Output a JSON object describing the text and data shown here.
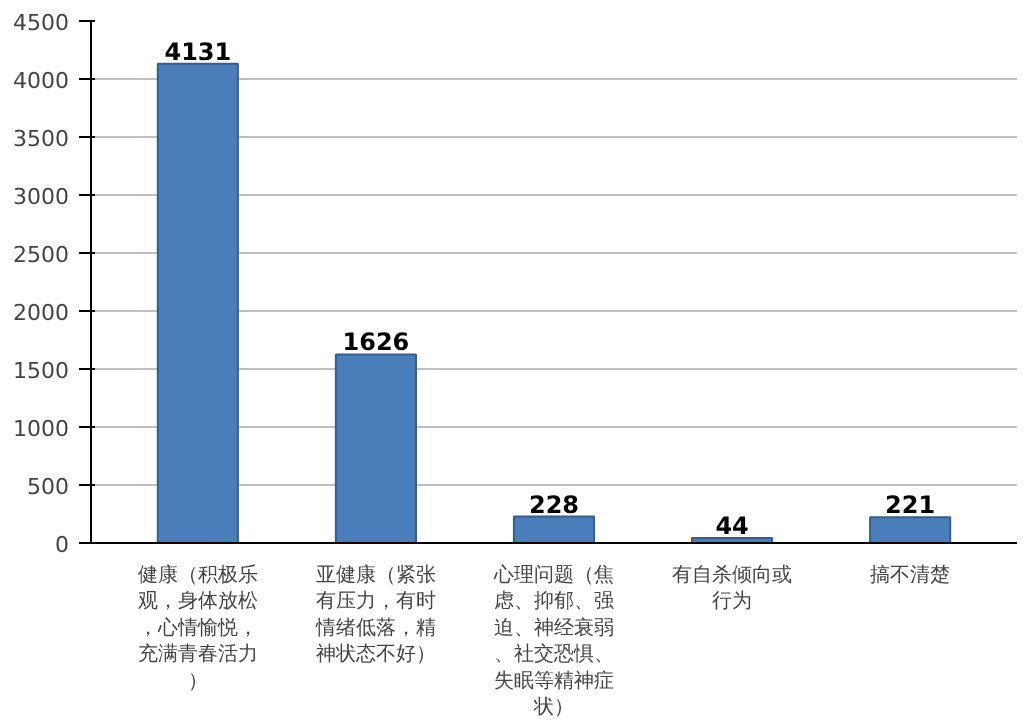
{
  "chart_data": {
    "type": "bar",
    "categories": [
      "健康（积极乐观，身体放松，心情愉悦，充满青春活力）",
      "亚健康（紧张有压力，有时情绪低落，精神状态不好）",
      "心理问题（焦虑、抑郁、强迫、神经衰弱、社交恐惧、失眠等精神症状）",
      "有自杀倾向或行为",
      "搞不清楚"
    ],
    "values": [
      4131,
      1626,
      228,
      44,
      221
    ],
    "color": "#4a7ebb",
    "ylim": [
      0,
      4500
    ],
    "yticks": [
      0,
      500,
      1000,
      1500,
      2000,
      2500,
      3000,
      3500,
      4000,
      4500
    ],
    "grid": "y",
    "data_labels": true
  }
}
